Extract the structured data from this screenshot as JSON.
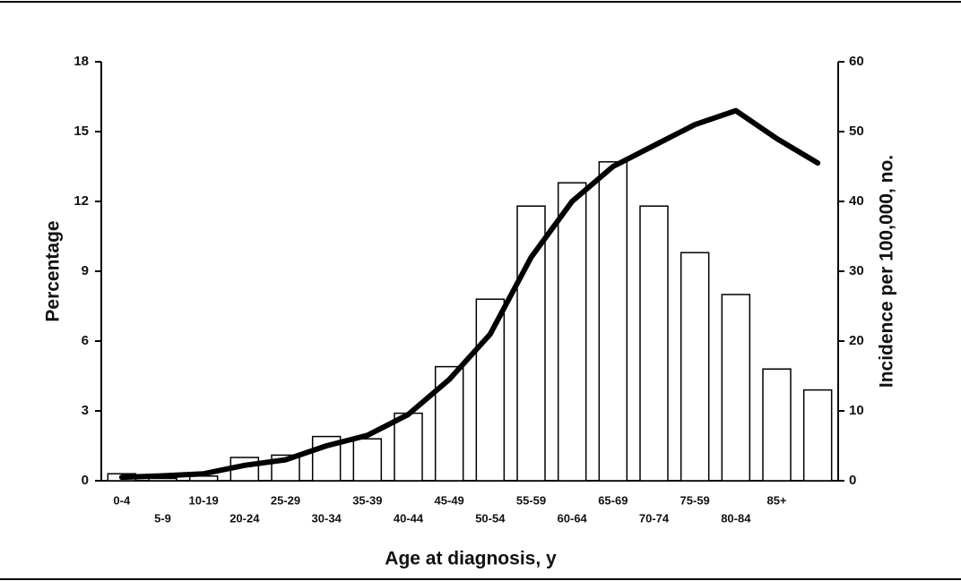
{
  "chart_data": {
    "type": "bar",
    "x_label": "Age at diagnosis, y",
    "y_label": "Percentage",
    "y2_label": "Incidence per 100,000, no.",
    "categories": [
      "0-4",
      "5-9",
      "10-19",
      "20-24",
      "25-29",
      "30-34",
      "35-39",
      "40-44",
      "45-49",
      "50-54",
      "55-59",
      "60-64",
      "65-69",
      "70-74",
      "75-59",
      "80-84",
      "85+",
      null
    ],
    "series": [
      {
        "type": "bar",
        "color": "#ffffff",
        "values": [
          0.3,
          0.1,
          0.2,
          1.0,
          1.1,
          1.9,
          1.8,
          2.9,
          4.9,
          7.8,
          11.8,
          12.8,
          13.7,
          11.8,
          9.8,
          8.0,
          4.8,
          3.9
        ]
      },
      {
        "type": "line",
        "axis": "y2",
        "color": "#000000",
        "values": [
          0.5,
          0.7,
          1.0,
          2.2,
          3.0,
          5.0,
          6.5,
          9.5,
          14.5,
          21,
          32,
          40,
          45,
          48,
          51,
          53,
          49,
          45.5
        ]
      }
    ],
    "ylim": [
      0,
      18
    ],
    "yticks": [
      0,
      3,
      6,
      9,
      12,
      15,
      18
    ],
    "y2lim": [
      0,
      60
    ],
    "y2ticks": [
      0,
      10,
      20,
      30,
      40,
      50,
      60
    ]
  }
}
